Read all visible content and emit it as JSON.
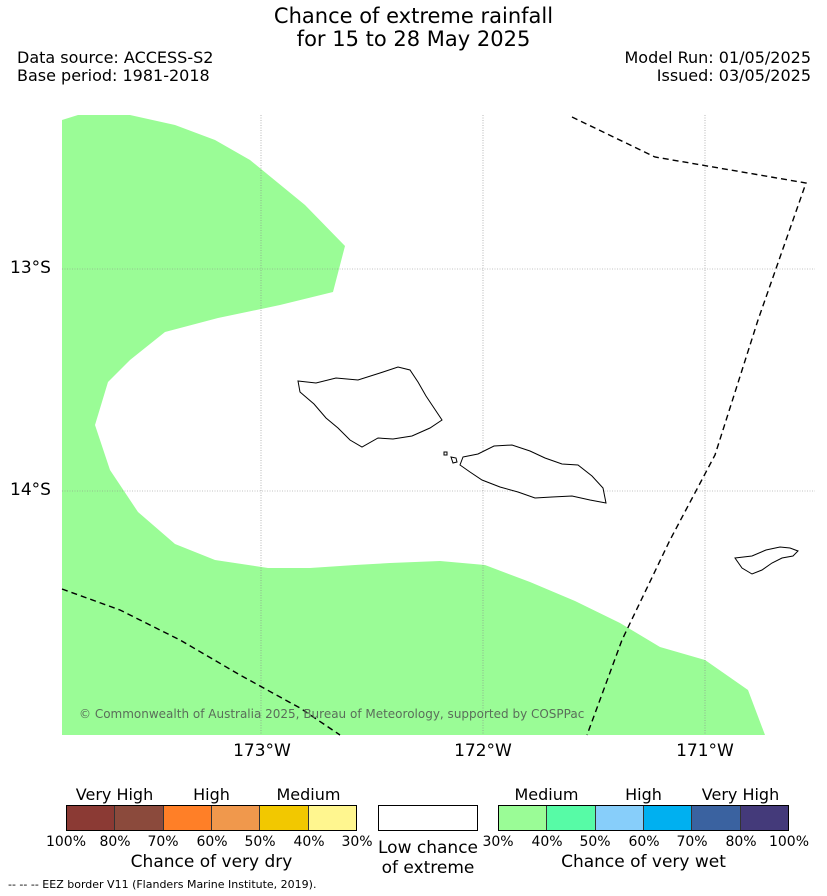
{
  "header": {
    "title_line1": "Chance of extreme rainfall",
    "title_line2": "for 15 to 28 May 2025",
    "data_source": "Data source: ACCESS-S2",
    "base_period": "Base period: 1981-2018",
    "model_run": "Model Run: 01/05/2025",
    "issued": "Issued: 03/05/2025"
  },
  "map": {
    "lat_labels": [
      "13°S",
      "14°S"
    ],
    "lon_labels": [
      "173°W",
      "172°W",
      "171°W"
    ],
    "copyright": "© Commonwealth of Australia 2025, Bureau of Meteorology, supported by COSPPac",
    "region_colors": {
      "wet_medium": "#9afc96",
      "land_outline": "#000000",
      "background": "#ffffff"
    }
  },
  "legend": {
    "dry": {
      "categories": [
        "Very High",
        "High",
        "Medium"
      ],
      "ticks": [
        "100%",
        "80%",
        "70%",
        "60%",
        "50%",
        "40%",
        "30%"
      ],
      "colors": [
        "#8b3a34",
        "#8b4a3c",
        "#ff7f27",
        "#f0984c",
        "#f2c800",
        "#fff68f"
      ],
      "label": "Chance of very dry"
    },
    "low": {
      "label_line1": "Low chance",
      "label_line2": "of extreme",
      "color": "#ffffff"
    },
    "wet": {
      "categories": [
        "Medium",
        "High",
        "Very High"
      ],
      "ticks": [
        "30%",
        "40%",
        "50%",
        "60%",
        "70%",
        "80%",
        "100%"
      ],
      "colors": [
        "#9afc96",
        "#57fba6",
        "#87cefa",
        "#00b0f0",
        "#3a62a0",
        "#443a7a"
      ],
      "label": "Chance of very wet"
    }
  },
  "footer": {
    "eez_note": "-- -- -- EEZ border V11 (Flanders Marine Institute, 2019)."
  }
}
